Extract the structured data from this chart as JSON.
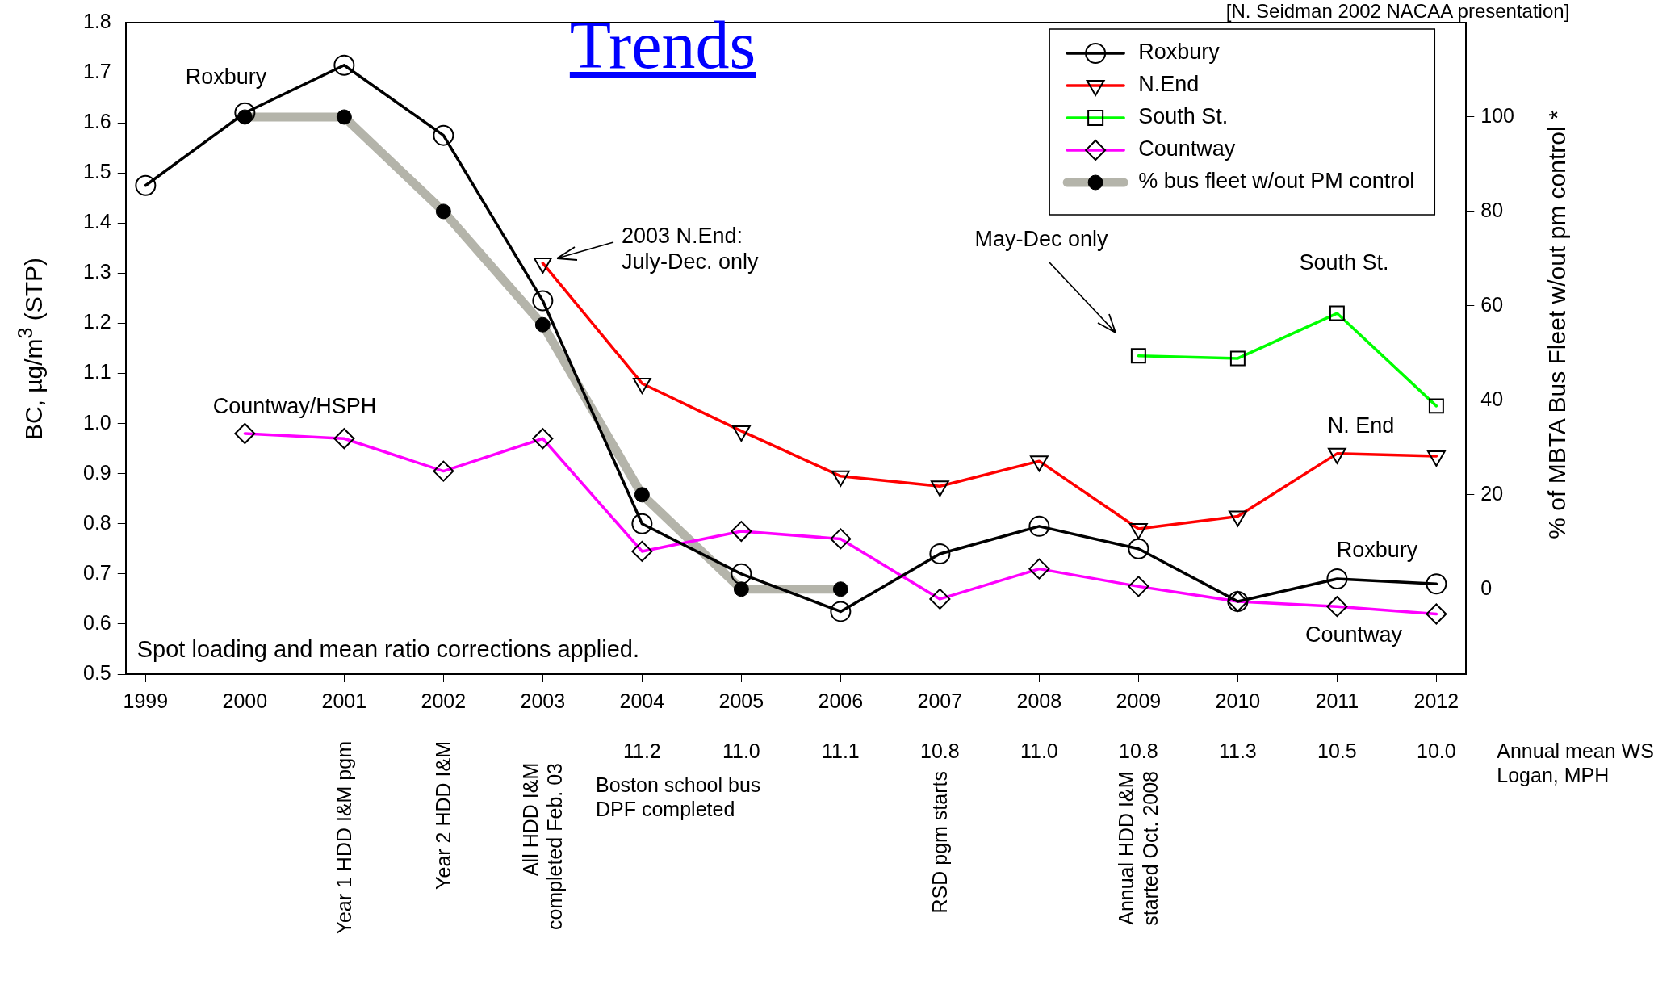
{
  "chart_data": {
    "type": "line",
    "title": "Trends",
    "ylabel": "BC, µg/m$^{3}$ (STP)",
    "y2label": "% of MBTA Bus Fleet w/out pm control *",
    "x": [
      1999,
      2000,
      2001,
      2002,
      2003,
      2004,
      2005,
      2006,
      2007,
      2008,
      2009,
      2010,
      2011,
      2012
    ],
    "xlim": [
      1998.8,
      2012.3
    ],
    "xticks": [
      1999,
      2000,
      2001,
      2002,
      2003,
      2004,
      2005,
      2006,
      2007,
      2008,
      2009,
      2010,
      2011,
      2012
    ],
    "ylim": [
      0.5,
      1.8
    ],
    "yticks": [
      0.5,
      0.6,
      0.7,
      0.8,
      0.9,
      {
        "value": 1,
        "label": "1.0"
      },
      1.1,
      1.2,
      1.3,
      1.4,
      1.5,
      1.6,
      1.7,
      1.8
    ],
    "y2lim": [
      -18,
      120
    ],
    "y2ticks": [
      0,
      20,
      40,
      60,
      80,
      100
    ],
    "grid": false,
    "legend": "top right",
    "line_style": "solid",
    "series": [
      {
        "name": "Roxbury",
        "color": "#000000",
        "marker": "circle",
        "values": [
          1.475,
          1.62,
          1.715,
          1.575,
          1.245,
          0.8,
          0.7,
          0.625,
          0.74,
          0.795,
          0.75,
          0.645,
          0.69,
          0.68
        ]
      },
      {
        "name": "N.End",
        "color": "#ff0000",
        "marker": "triangle",
        "values": [
          null,
          null,
          null,
          null,
          1.32,
          1.08,
          0.985,
          0.895,
          0.875,
          0.925,
          0.79,
          0.815,
          0.94,
          0.935
        ]
      },
      {
        "name": "South St.",
        "color": "#00ff00",
        "marker": "square",
        "values": [
          null,
          null,
          null,
          null,
          null,
          null,
          null,
          null,
          null,
          null,
          1.135,
          1.13,
          1.22,
          1.035
        ]
      },
      {
        "name": "Countway",
        "color": "#ff00ff",
        "marker": "diamond",
        "values": [
          null,
          0.98,
          0.97,
          0.905,
          0.97,
          0.745,
          0.785,
          0.77,
          0.65,
          0.71,
          0.675,
          0.645,
          0.635,
          0.62
        ]
      },
      {
        "name": "% bus fleet w/out PM control",
        "color": "#b4b4aa",
        "marker": "circle",
        "axis": "y2",
        "values": [
          null,
          100,
          100,
          80,
          56,
          20,
          0,
          0,
          null,
          null,
          null,
          null,
          null,
          null
        ]
      }
    ],
    "annotations": [
      "[N. Seidman 2002 NACAA presentation]",
      "Spot loading and mean ratio corrections applied.",
      "Boston school bus\nDPF completed",
      "Annual mean WS\nLogan, MPH",
      "Roxbury",
      "Countway/HSPH",
      "2003 N.End:\nJuly-Dec. only",
      "May-Dec only",
      "South St.",
      "N. End",
      "Roxbury",
      "Countway",
      "11.2",
      "11.0",
      "11.1",
      "10.8",
      "11.0",
      "10.8",
      "11.3",
      "10.5",
      "10.0",
      "Year 1 HDD I&M pgm",
      "Year 2 HDD I&M",
      "All HDD I&M\ncompleted Feb. 03",
      "RSD pgm starts",
      "Annual HDD I&M\nstarted Oct. 2008"
    ]
  }
}
